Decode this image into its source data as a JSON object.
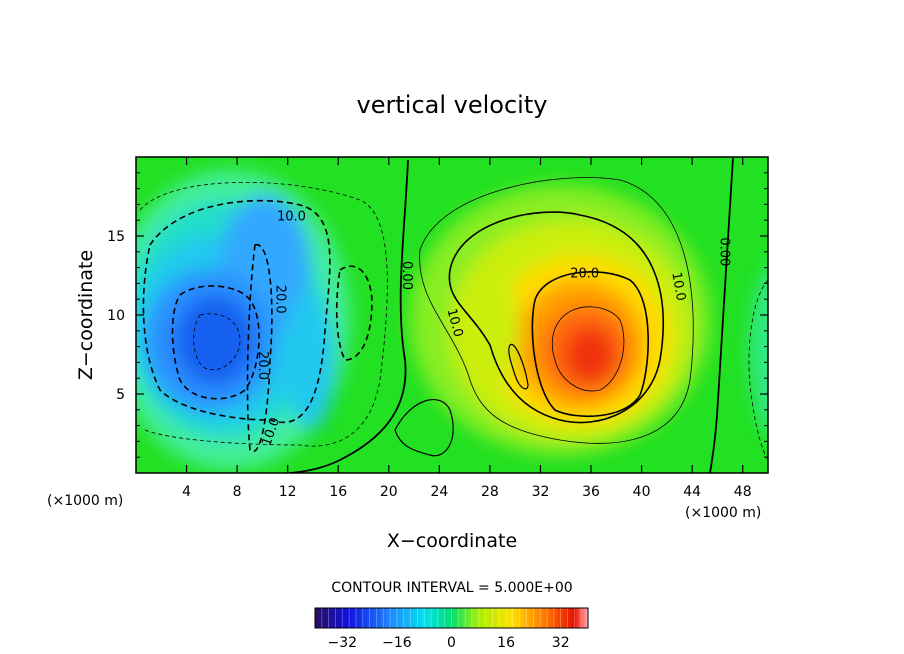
{
  "chart_data": {
    "type": "heatmap",
    "title": "vertical velocity",
    "xlabel": "X−coordinate",
    "ylabel": "Z−coordinate",
    "x_unit_left": "(×1000 m)",
    "x_unit_right": "(×1000 m)",
    "xlim": [
      0,
      50
    ],
    "ylim": [
      0,
      20
    ],
    "x_ticks": [
      4,
      8,
      12,
      16,
      20,
      24,
      28,
      32,
      36,
      40,
      44,
      48
    ],
    "x_tick_labels": [
      "4",
      "8",
      "12",
      "16",
      "20",
      "24",
      "28",
      "32",
      "36",
      "40",
      "44",
      "48"
    ],
    "y_ticks": [
      5,
      10,
      15
    ],
    "y_tick_labels": [
      "5",
      "10",
      "15"
    ],
    "contour_interval_text": "CONTOUR INTERVAL = 5.000E+00",
    "colorbar": {
      "range": [
        -40,
        40
      ],
      "ticks": [
        -32,
        -16,
        0,
        16,
        32
      ],
      "tick_labels": [
        "−32",
        "−16",
        "0",
        "16",
        "32"
      ]
    },
    "contour_labels": [
      {
        "text": "10.0",
        "x": 12.3,
        "z": 16.2,
        "rotation": 0
      },
      {
        "text": "20.0",
        "x": 11.4,
        "z": 11.0,
        "rotation": 90
      },
      {
        "text": "20.0",
        "x": 10.0,
        "z": 6.8,
        "rotation": 90
      },
      {
        "text": "10.0",
        "x": 10.7,
        "z": 2.6,
        "rotation": -70
      },
      {
        "text": "0.00",
        "x": 21.4,
        "z": 12.5,
        "rotation": 90
      },
      {
        "text": "10.0",
        "x": 25.2,
        "z": 9.5,
        "rotation": 75
      },
      {
        "text": "20.0",
        "x": 35.5,
        "z": 12.6,
        "rotation": 0
      },
      {
        "text": "10.0",
        "x": 42.9,
        "z": 11.8,
        "rotation": 80
      },
      {
        "text": "0.00",
        "x": 46.5,
        "z": 14.0,
        "rotation": 90
      }
    ],
    "field_centers": [
      {
        "sign": "negative",
        "x": 7.0,
        "z": 8.5,
        "peak": -28
      },
      {
        "sign": "negative",
        "x": 10.5,
        "z": 13.0,
        "peak": -20
      },
      {
        "sign": "positive",
        "x": 35.5,
        "z": 7.5,
        "peak": 30
      },
      {
        "sign": "negative",
        "x": 49.5,
        "z": 8.0,
        "peak": -5
      }
    ]
  }
}
